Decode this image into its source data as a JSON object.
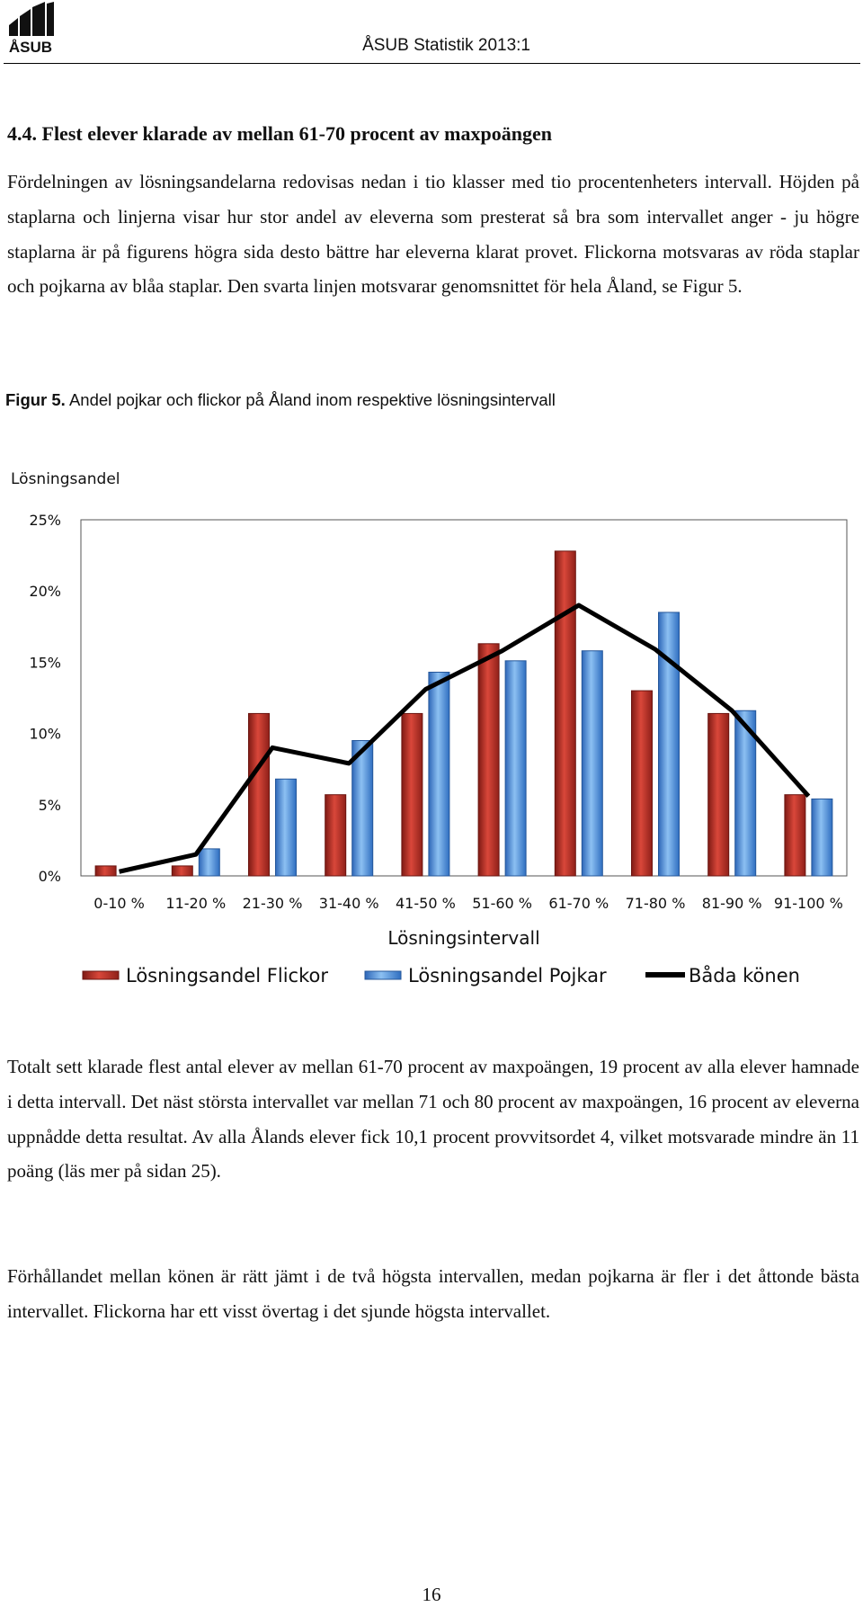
{
  "header": {
    "logo_text": "ÅSUB",
    "title": "ÅSUB Statistik 2013:1"
  },
  "section": {
    "heading": "4.4. Flest elever klarade av mellan 61-70 procent av maxpoängen"
  },
  "paragraphs": {
    "p1": "Fördelningen av lösningsandelarna redovisas nedan i tio klasser med tio procentenheters intervall. Höjden på staplarna och linjerna visar hur stor andel av eleverna som presterat så bra som intervallet anger - ju högre staplarna är på figurens högra sida desto bättre har eleverna klarat provet. Flickorna motsvaras av röda staplar och pojkarna av blåa staplar. Den svarta linjen motsvarar genomsnittet för hela Åland, se Figur 5.",
    "p2": "Totalt sett klarade flest antal elever av mellan 61-70 procent av maxpoängen, 19 procent av alla elever hamnade i detta intervall. Det näst största intervallet var mellan 71 och 80 procent av maxpoängen, 16 procent av eleverna uppnådde detta resultat.  Av alla Ålands elever fick 10,1 procent provvitsordet 4, vilket motsvarade mindre än 11 poäng (läs mer på sidan 25).",
    "p3": "Förhållandet mellan könen är rätt jämt i de två högsta intervallen, medan pojkarna är fler i det åttonde bästa intervallet. Flickorna har ett visst övertag i det sjunde högsta intervallet."
  },
  "figure": {
    "label": "Figur 5.",
    "caption": "Andel pojkar och flickor på Åland inom respektive lösningsintervall"
  },
  "chart_data": {
    "type": "bar",
    "ylabel": "Lösningsandel",
    "xlabel": "Lösningsintervall",
    "ylim": [
      0,
      25
    ],
    "yticks": [
      0,
      5,
      10,
      15,
      20,
      25
    ],
    "ytick_labels": [
      "0%",
      "5%",
      "10%",
      "15%",
      "20%",
      "25%"
    ],
    "categories": [
      "0-10 %",
      "11-20 %",
      "21-30 %",
      "31-40 %",
      "41-50 %",
      "51-60 %",
      "61-70 %",
      "71-80 %",
      "81-90 %",
      "91-100 %"
    ],
    "series": [
      {
        "name": "Lösningsandel Flickor",
        "kind": "bar",
        "color": "#c0392b",
        "values": [
          0.7,
          0.7,
          11.4,
          5.7,
          11.4,
          16.3,
          22.8,
          13.0,
          11.4,
          5.7
        ]
      },
      {
        "name": "Lösningsandel Pojkar",
        "kind": "bar",
        "color": "#4a90d9",
        "values": [
          0.0,
          1.9,
          6.8,
          9.5,
          14.3,
          15.1,
          15.8,
          18.5,
          11.6,
          5.4
        ]
      },
      {
        "name": "Båda könen",
        "kind": "line",
        "color": "#000000",
        "values": [
          0.3,
          1.5,
          9.0,
          7.9,
          13.1,
          15.8,
          19.0,
          15.9,
          11.6,
          5.6
        ]
      }
    ],
    "legend_position": "bottom",
    "grid": false
  },
  "footer": {
    "page_number": "16"
  }
}
